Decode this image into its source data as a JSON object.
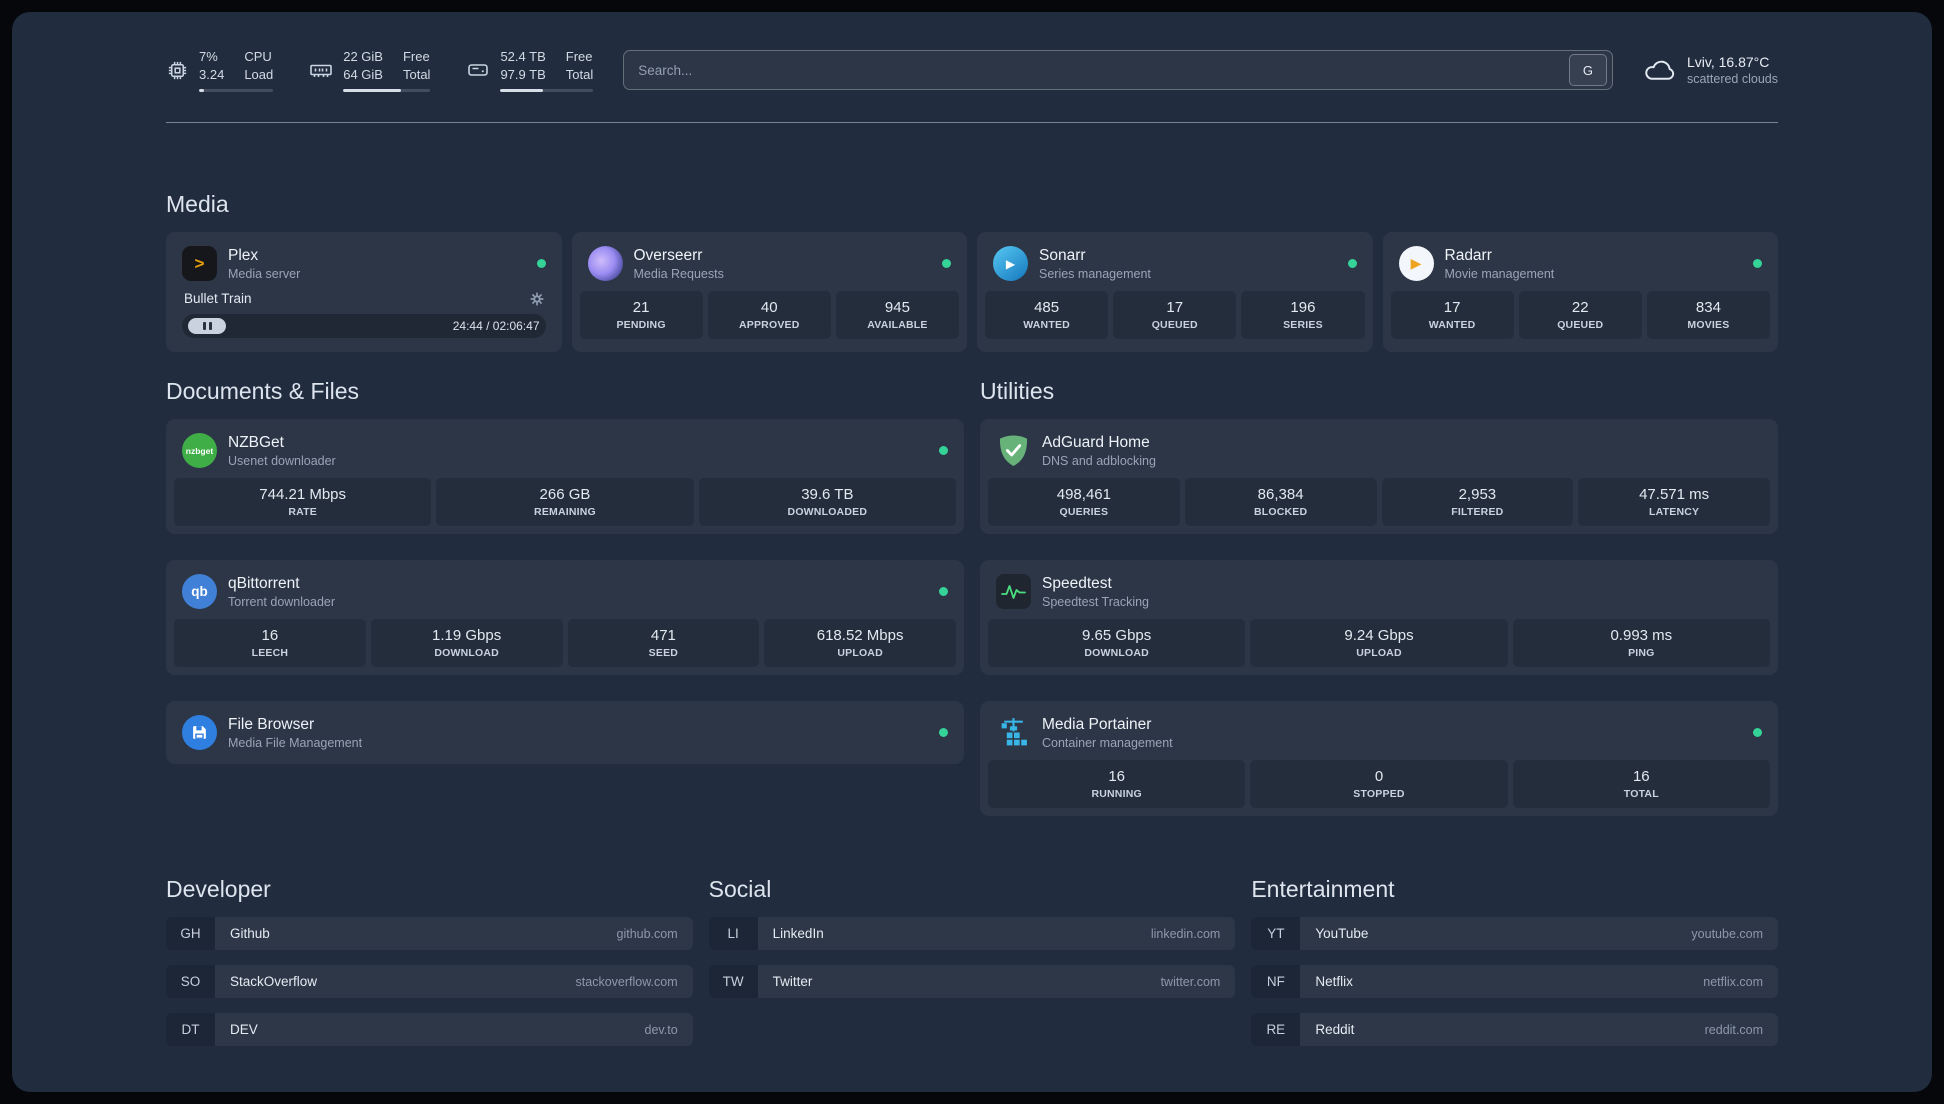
{
  "header": {
    "resources": [
      {
        "value_top": "7%",
        "value_bottom": "3.24",
        "label_top": "CPU",
        "label_bottom": "Load",
        "bar_percent": 7
      },
      {
        "value_top": "22 GiB",
        "value_bottom": "64 GiB",
        "label_top": "Free",
        "label_bottom": "Total",
        "bar_percent": 66
      },
      {
        "value_top": "52.4 TB",
        "value_bottom": "97.9 TB",
        "label_top": "Free",
        "label_bottom": "Total",
        "bar_percent": 46
      }
    ],
    "search": {
      "placeholder": "Search...",
      "provider_label": "G"
    },
    "weather": {
      "location": "Lviv, 16.87°C",
      "condition": "scattered clouds"
    }
  },
  "colors": {
    "status_online": "#35d398",
    "accent_plex": "#e8a00c",
    "background": "#212c3e"
  },
  "groups": {
    "media": {
      "title": "Media",
      "cards": [
        {
          "name": "Plex",
          "desc": "Media server",
          "status": "online",
          "player": {
            "title": "Bullet Train",
            "time": "24:44 / 02:06:47"
          }
        },
        {
          "name": "Overseerr",
          "desc": "Media Requests",
          "status": "online",
          "stats": [
            {
              "value": "21",
              "label": "PENDING"
            },
            {
              "value": "40",
              "label": "APPROVED"
            },
            {
              "value": "945",
              "label": "AVAILABLE"
            }
          ]
        },
        {
          "name": "Sonarr",
          "desc": "Series management",
          "status": "online",
          "stats": [
            {
              "value": "485",
              "label": "WANTED"
            },
            {
              "value": "17",
              "label": "QUEUED"
            },
            {
              "value": "196",
              "label": "SERIES"
            }
          ]
        },
        {
          "name": "Radarr",
          "desc": "Movie management",
          "status": "online",
          "stats": [
            {
              "value": "17",
              "label": "WANTED"
            },
            {
              "value": "22",
              "label": "QUEUED"
            },
            {
              "value": "834",
              "label": "MOVIES"
            }
          ]
        }
      ]
    },
    "documents": {
      "title": "Documents & Files",
      "cards": [
        {
          "name": "NZBGet",
          "desc": "Usenet downloader",
          "status": "online",
          "stats": [
            {
              "value": "744.21 Mbps",
              "label": "RATE"
            },
            {
              "value": "266 GB",
              "label": "REMAINING"
            },
            {
              "value": "39.6 TB",
              "label": "DOWNLOADED"
            }
          ]
        },
        {
          "name": "qBittorrent",
          "desc": "Torrent downloader",
          "status": "online",
          "stats": [
            {
              "value": "16",
              "label": "LEECH"
            },
            {
              "value": "1.19 Gbps",
              "label": "DOWNLOAD"
            },
            {
              "value": "471",
              "label": "SEED"
            },
            {
              "value": "618.52 Mbps",
              "label": "UPLOAD"
            }
          ]
        },
        {
          "name": "File Browser",
          "desc": "Media File Management",
          "status": "online"
        }
      ]
    },
    "utilities": {
      "title": "Utilities",
      "cards": [
        {
          "name": "AdGuard Home",
          "desc": "DNS and adblocking",
          "stats": [
            {
              "value": "498,461",
              "label": "QUERIES"
            },
            {
              "value": "86,384",
              "label": "BLOCKED"
            },
            {
              "value": "2,953",
              "label": "FILTERED"
            },
            {
              "value": "47.571 ms",
              "label": "LATENCY"
            }
          ]
        },
        {
          "name": "Speedtest",
          "desc": "Speedtest Tracking",
          "stats": [
            {
              "value": "9.65 Gbps",
              "label": "DOWNLOAD"
            },
            {
              "value": "9.24 Gbps",
              "label": "UPLOAD"
            },
            {
              "value": "0.993 ms",
              "label": "PING"
            }
          ]
        },
        {
          "name": "Media Portainer",
          "desc": "Container management",
          "status": "online",
          "stats": [
            {
              "value": "16",
              "label": "RUNNING"
            },
            {
              "value": "0",
              "label": "STOPPED"
            },
            {
              "value": "16",
              "label": "TOTAL"
            }
          ]
        }
      ]
    }
  },
  "bookmarks": [
    {
      "title": "Developer",
      "items": [
        {
          "abbr": "GH",
          "name": "Github",
          "url": "github.com"
        },
        {
          "abbr": "SO",
          "name": "StackOverflow",
          "url": "stackoverflow.com"
        },
        {
          "abbr": "DT",
          "name": "DEV",
          "url": "dev.to"
        }
      ]
    },
    {
      "title": "Social",
      "items": [
        {
          "abbr": "LI",
          "name": "LinkedIn",
          "url": "linkedin.com"
        },
        {
          "abbr": "TW",
          "name": "Twitter",
          "url": "twitter.com"
        }
      ]
    },
    {
      "title": "Entertainment",
      "items": [
        {
          "abbr": "YT",
          "name": "YouTube",
          "url": "youtube.com"
        },
        {
          "abbr": "NF",
          "name": "Netflix",
          "url": "netflix.com"
        },
        {
          "abbr": "RE",
          "name": "Reddit",
          "url": "reddit.com"
        }
      ]
    }
  ]
}
